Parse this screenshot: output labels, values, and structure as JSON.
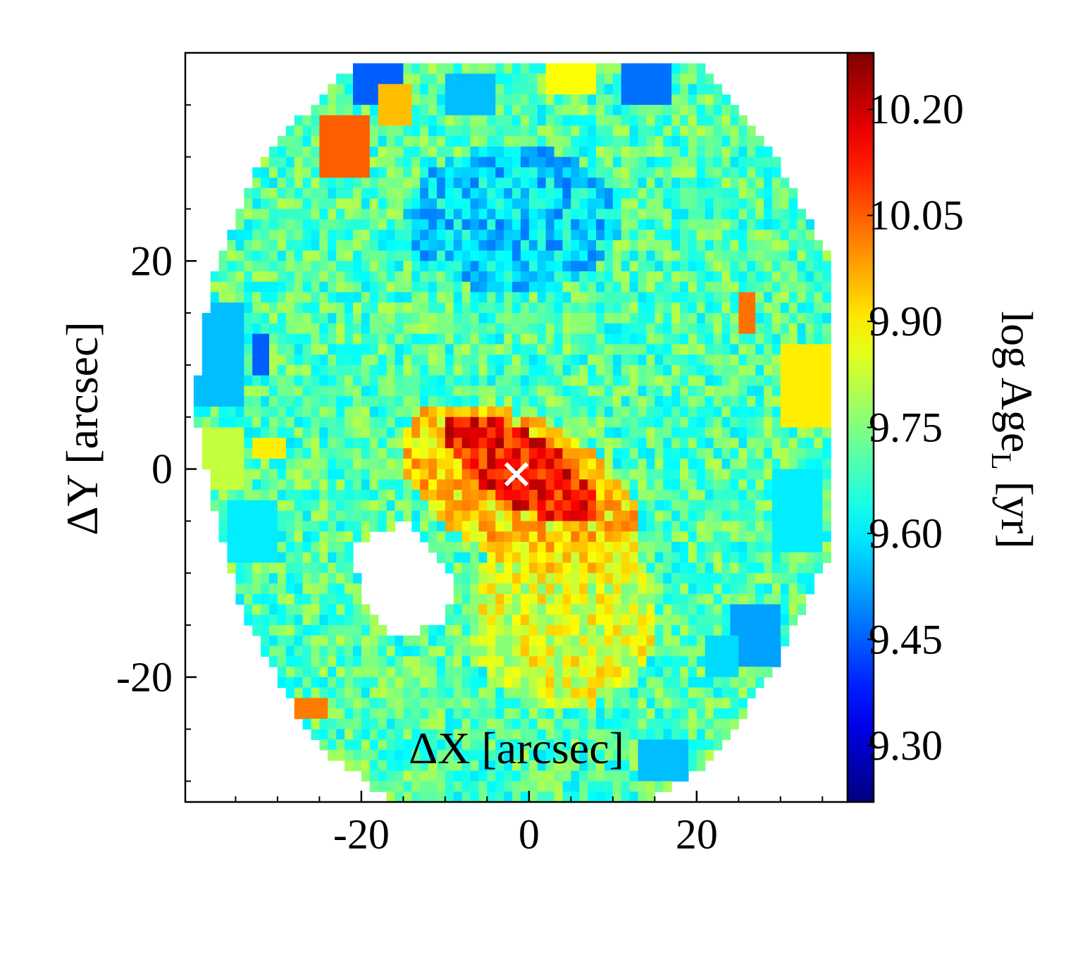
{
  "chart_data": {
    "type": "heatmap",
    "title": "",
    "xlabel": "ΔX [arcsec]",
    "ylabel": "ΔY [arcsec]",
    "xlim": [
      -41,
      38
    ],
    "ylim": [
      -32,
      40
    ],
    "x_ticks": [
      -20,
      0,
      20
    ],
    "x_tick_labels": [
      "-20",
      "0",
      "20"
    ],
    "y_ticks": [
      -20,
      0,
      20
    ],
    "y_tick_labels": [
      "-20",
      "0",
      "20"
    ],
    "x_minor_ticks": [
      -35,
      -30,
      -25,
      -15,
      -10,
      -5,
      5,
      10,
      15,
      25,
      30,
      35
    ],
    "y_minor_ticks": [
      -30,
      -25,
      -15,
      -10,
      -5,
      5,
      10,
      15,
      25,
      30,
      35
    ],
    "grid": false,
    "colormap": "jet",
    "colorbar": {
      "label_main": "log Age",
      "label_sub": "L",
      "label_unit": " [yr]",
      "range": [
        9.22,
        10.28
      ],
      "ticks": [
        9.3,
        9.45,
        9.6,
        9.75,
        9.9,
        10.05,
        10.2
      ],
      "tick_labels": [
        "9.30",
        "9.45",
        "9.60",
        "9.75",
        "9.90",
        "10.05",
        "10.20"
      ]
    },
    "map": {
      "pixel_size_arcsec": 1.0,
      "background_level": 9.7,
      "outer_boundary_arcsec": [
        [
          -20,
          39
        ],
        [
          20,
          39
        ],
        [
          28,
          32
        ],
        [
          36,
          20
        ],
        [
          36,
          8
        ],
        [
          36,
          -8
        ],
        [
          30,
          -18
        ],
        [
          22,
          -28
        ],
        [
          14,
          -32
        ],
        [
          -16,
          -32
        ],
        [
          -26,
          -26
        ],
        [
          -34,
          -14
        ],
        [
          -38,
          -2
        ],
        [
          -40,
          6
        ],
        [
          -38,
          18
        ],
        [
          -32,
          30
        ],
        [
          -22,
          38
        ]
      ],
      "blank_region_arcsec": [
        [
          -21,
          -7
        ],
        [
          -14,
          -5
        ],
        [
          -9,
          -11
        ],
        [
          -10,
          -15
        ],
        [
          -16,
          -16
        ],
        [
          -20,
          -12
        ]
      ],
      "features": [
        {
          "region": "center-old",
          "center": [
            -1,
            0
          ],
          "size": [
            20,
            7
          ],
          "angle_deg": -25,
          "level": 10.13
        },
        {
          "region": "bulge-envelope",
          "center": [
            -1,
            -2
          ],
          "size": [
            30,
            14
          ],
          "angle_deg": -20,
          "level": 9.92
        },
        {
          "region": "south-disk",
          "center": [
            4,
            -14
          ],
          "size": [
            22,
            18
          ],
          "angle_deg": 0,
          "level": 9.84
        },
        {
          "region": "north-young",
          "center": [
            -2,
            24
          ],
          "size": [
            26,
            14
          ],
          "angle_deg": 0,
          "level": 9.58
        },
        {
          "region": "north-edge-bin",
          "center": [
            -7,
            36
          ],
          "size": [
            5,
            3
          ],
          "angle_deg": 0,
          "level": 9.55
        },
        {
          "region": "north-edge-bin",
          "center": [
            -18,
            37
          ],
          "size": [
            6,
            4
          ],
          "angle_deg": 0,
          "level": 9.45
        },
        {
          "region": "north-edge-bin",
          "center": [
            14,
            37
          ],
          "size": [
            6,
            4
          ],
          "angle_deg": 0,
          "level": 9.47
        },
        {
          "region": "north-edge-bin",
          "center": [
            -22,
            31
          ],
          "size": [
            6,
            5
          ],
          "angle_deg": 0,
          "level": 10.05
        },
        {
          "region": "north-edge-bin",
          "center": [
            -16,
            35
          ],
          "size": [
            3,
            3
          ],
          "angle_deg": 0,
          "level": 9.95
        },
        {
          "region": "north-edge-bin",
          "center": [
            5,
            38
          ],
          "size": [
            5,
            3
          ],
          "angle_deg": 0,
          "level": 9.88
        },
        {
          "region": "west-edge-bin",
          "center": [
            -37,
            11
          ],
          "size": [
            6,
            9
          ],
          "angle_deg": 0,
          "level": 9.55
        },
        {
          "region": "west-edge-bin",
          "center": [
            -32,
            11
          ],
          "size": [
            2,
            4
          ],
          "angle_deg": 0,
          "level": 9.45
        },
        {
          "region": "west-edge-bin",
          "center": [
            -37,
            1
          ],
          "size": [
            6,
            6
          ],
          "angle_deg": 0,
          "level": 9.82
        },
        {
          "region": "west-edge-bin",
          "center": [
            -33,
            -6
          ],
          "size": [
            5,
            5
          ],
          "angle_deg": 0,
          "level": 9.6
        },
        {
          "region": "west-edge-bin",
          "center": [
            -31,
            2
          ],
          "size": [
            3,
            2
          ],
          "angle_deg": 0,
          "level": 9.9
        },
        {
          "region": "east-edge-bin",
          "center": [
            33,
            8
          ],
          "size": [
            6,
            8
          ],
          "angle_deg": 0,
          "level": 9.9
        },
        {
          "region": "east-edge-bin",
          "center": [
            26,
            15
          ],
          "size": [
            2,
            4
          ],
          "angle_deg": 0,
          "level": 10.03
        },
        {
          "region": "east-edge-bin",
          "center": [
            32,
            -4
          ],
          "size": [
            6,
            8
          ],
          "angle_deg": 0,
          "level": 9.6
        },
        {
          "region": "east-edge-bin",
          "center": [
            27,
            -16
          ],
          "size": [
            6,
            6
          ],
          "angle_deg": 0,
          "level": 9.52
        },
        {
          "region": "east-edge-bin",
          "center": [
            23,
            -18
          ],
          "size": [
            4,
            4
          ],
          "angle_deg": 0,
          "level": 9.58
        },
        {
          "region": "south-edge-bin",
          "center": [
            16,
            -28
          ],
          "size": [
            6,
            4
          ],
          "angle_deg": 0,
          "level": 9.55
        },
        {
          "region": "south-edge-bin",
          "center": [
            -26,
            -23
          ],
          "size": [
            3,
            2
          ],
          "angle_deg": 0,
          "level": 10.02
        }
      ]
    },
    "marker": {
      "x": -1.5,
      "y": -0.5,
      "symbol": "×",
      "color": "#ffffff"
    }
  }
}
